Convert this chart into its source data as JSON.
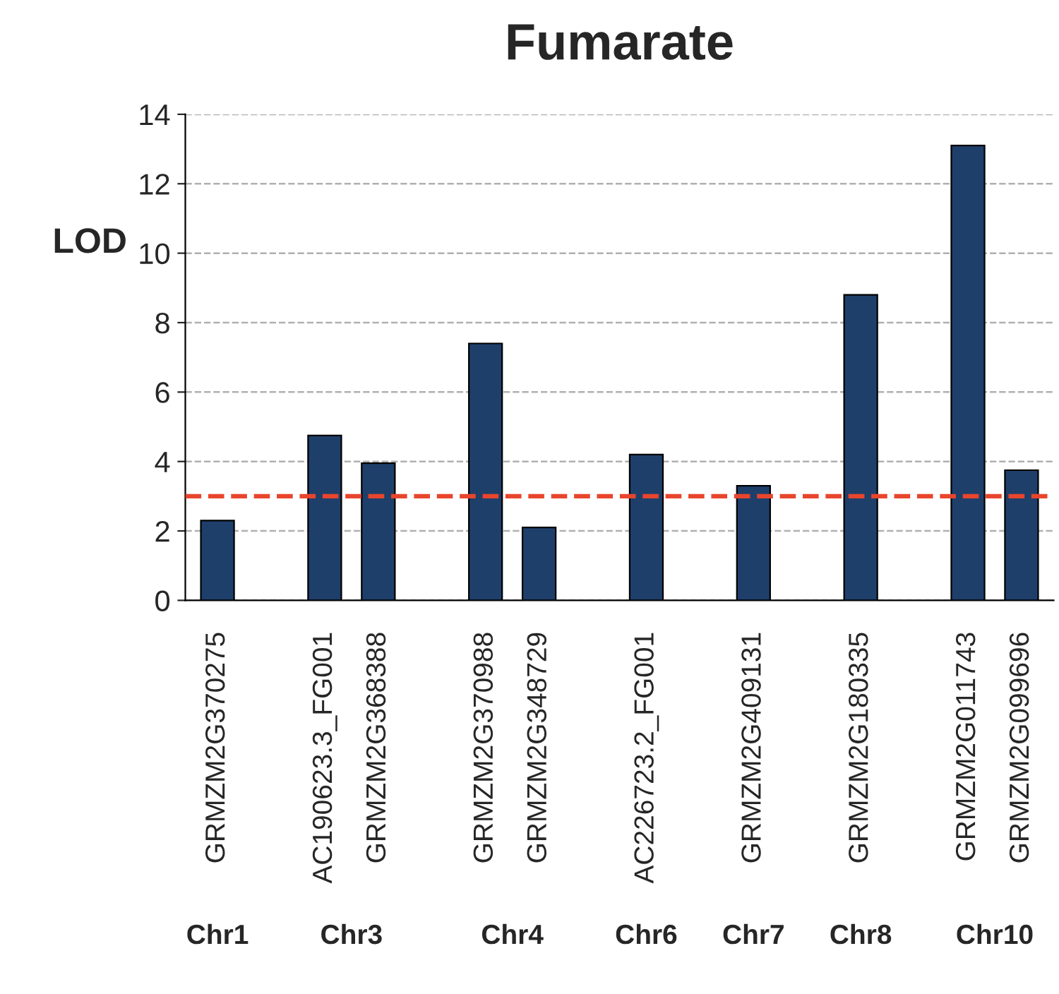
{
  "chart_data": {
    "type": "bar",
    "title": "Fumarate",
    "ylabel": "LOD",
    "categories": [
      "GRMZM2G370275",
      null,
      "AC190623.3_FG001",
      "GRMZM2G368388",
      null,
      "GRMZM2G370988",
      "GRMZM2G348729",
      null,
      "AC226723.2_FG001",
      null,
      "GRMZM2G409131",
      null,
      "GRMZM2G180335",
      null,
      "GRMZM2G011743",
      "GRMZM2G099696"
    ],
    "values": [
      2.3,
      null,
      4.75,
      3.95,
      null,
      7.4,
      2.1,
      null,
      4.2,
      null,
      3.3,
      null,
      8.8,
      null,
      13.1,
      3.75
    ],
    "color": "#1f3f6b",
    "ylim": [
      0,
      14
    ],
    "yticks": [
      0,
      2,
      4,
      6,
      8,
      10,
      12,
      14
    ],
    "grid": "y",
    "ref_lines": [
      {
        "axis": "y",
        "value": 3,
        "color": "#e8452c",
        "line_style": "dashed"
      }
    ],
    "annotations": [
      "Chr1",
      "Chr3",
      "Chr4",
      "Chr6",
      "Chr7",
      "Chr8",
      "Chr10"
    ]
  }
}
